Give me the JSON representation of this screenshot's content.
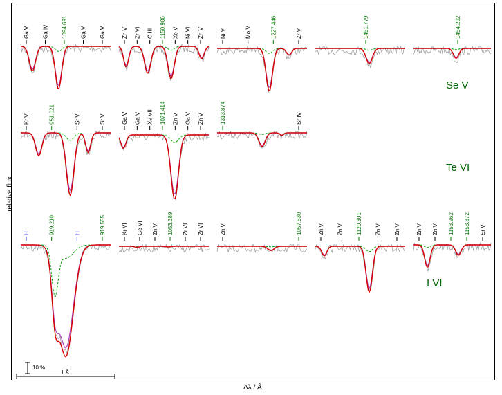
{
  "axes": {
    "ylabel": "relative flux",
    "xlabel": "Δλ / Å"
  },
  "scale_bar": {
    "flux_label": "10 %",
    "wavelength_label": "1 Å"
  },
  "chart_data": {
    "type": "line",
    "colors": {
      "model": "#d40000",
      "model_alt": "#b03fb8",
      "model_without": "#00a000",
      "observed": "#a0a0a0",
      "line_mark": "#000000",
      "target_mark": "#0a7a0a",
      "hydrogen_mark": "#3333cc"
    },
    "ions": [
      "Se V",
      "Te VI",
      "I VI"
    ],
    "panels": [
      {
        "id": "p0",
        "target": "1094.691",
        "labels": [
          {
            "t": "Ga V"
          },
          {
            "t": "Ga IV"
          },
          {
            "t": "1094.691",
            "target": true
          },
          {
            "t": "Ga V"
          },
          {
            "t": "Ga V"
          }
        ],
        "lines": [
          {
            "pos": 0.13,
            "depth": 0.55,
            "width": 0.05
          },
          {
            "pos": 0.42,
            "depth": 0.95,
            "width": 0.05
          }
        ]
      },
      {
        "id": "p1",
        "target": "1150.986",
        "labels": [
          {
            "t": "Zn V"
          },
          {
            "t": "Zr VI"
          },
          {
            "t": "O III"
          },
          {
            "t": "1150.986",
            "target": true
          },
          {
            "t": "Xe V"
          },
          {
            "t": "Ni VI"
          },
          {
            "t": "Zn V"
          }
        ],
        "lines": [
          {
            "pos": 0.08,
            "depth": 0.5,
            "width": 0.04
          },
          {
            "pos": 0.32,
            "depth": 0.65,
            "width": 0.05
          },
          {
            "pos": 0.58,
            "depth": 0.78,
            "width": 0.05
          },
          {
            "pos": 0.92,
            "depth": 0.3,
            "width": 0.04
          }
        ]
      },
      {
        "id": "p2",
        "target": "1227.446",
        "labels": [
          {
            "t": "Ni V"
          },
          {
            "t": "Mo V"
          },
          {
            "t": "1227.446",
            "target": true
          },
          {
            "t": "Zr V"
          }
        ],
        "lines": [
          {
            "pos": 0.58,
            "depth": 0.95,
            "width": 0.05
          },
          {
            "pos": 0.8,
            "depth": 0.15,
            "width": 0.04
          }
        ]
      },
      {
        "id": "p3",
        "target": "1451.779",
        "labels": [
          {
            "t": "1451.779",
            "target": true
          }
        ],
        "lines": [
          {
            "pos": 0.6,
            "depth": 0.55,
            "width": 0.05
          }
        ]
      },
      {
        "id": "p4",
        "target": "1454.292",
        "labels": [
          {
            "t": "1454.292",
            "target": true
          }
        ],
        "lines": [
          {
            "pos": 0.55,
            "depth": 0.45,
            "width": 0.05
          }
        ]
      },
      {
        "id": "p5",
        "target": "951.021",
        "labels": [
          {
            "t": "Kr VI"
          },
          {
            "t": "951.021",
            "target": true
          },
          {
            "t": "Sr V"
          },
          {
            "t": "Sr V"
          }
        ],
        "lines": [
          {
            "pos": 0.2,
            "depth": 0.35,
            "width": 0.05
          },
          {
            "pos": 0.55,
            "depth": 0.95,
            "width": 0.06
          },
          {
            "pos": 0.75,
            "depth": 0.3,
            "width": 0.04
          }
        ]
      },
      {
        "id": "p6",
        "target": "1071.414",
        "labels": [
          {
            "t": "Ga V"
          },
          {
            "t": "Ga V"
          },
          {
            "t": "Xe VII"
          },
          {
            "t": "1071.414",
            "target": true
          },
          {
            "t": "Zn V"
          },
          {
            "t": "Ga VI"
          },
          {
            "t": "Zn V"
          }
        ],
        "lines": [
          {
            "pos": 0.05,
            "depth": 0.2,
            "width": 0.04
          },
          {
            "pos": 0.62,
            "depth": 0.95,
            "width": 0.06
          }
        ]
      },
      {
        "id": "p7",
        "target": "1313.874",
        "labels": [
          {
            "t": "1313.874",
            "target": true
          },
          {
            "t": "Sr IV"
          }
        ],
        "lines": [
          {
            "pos": 0.5,
            "depth": 0.55,
            "width": 0.05
          },
          {
            "pos": 0.72,
            "depth": 0.1,
            "width": 0.03
          }
        ]
      },
      {
        "id": "p8",
        "target": "919.210",
        "labels": [
          {
            "t": "H",
            "h": true
          },
          {
            "t": "919.210",
            "target": true
          },
          {
            "t": "H",
            "h": true
          },
          {
            "t": "919.555",
            "target": true
          }
        ],
        "lines": [
          {
            "pos": 0.5,
            "depth": 0.95,
            "width": 0.12
          },
          {
            "pos": 0.38,
            "depth": 0.4,
            "width": 0.05
          }
        ]
      },
      {
        "id": "p9",
        "target": "1053.389",
        "labels": [
          {
            "t": "Kr VI"
          },
          {
            "t": "Ge VI"
          },
          {
            "t": "Zn V"
          },
          {
            "t": "1053.389",
            "target": true
          },
          {
            "t": "Zr VI"
          },
          {
            "t": "Zr VI"
          }
        ],
        "lines": [
          {
            "pos": 0.2,
            "depth": 0.15,
            "width": 0.04
          },
          {
            "pos": 0.55,
            "depth": 0.1,
            "width": 0.04
          }
        ]
      },
      {
        "id": "p10",
        "target": "1057.530",
        "labels": [
          {
            "t": "Zn V"
          },
          {
            "t": "1057.530",
            "target": true
          }
        ],
        "lines": [
          {
            "pos": 0.6,
            "depth": 0.25,
            "width": 0.05
          }
        ]
      },
      {
        "id": "p11",
        "target": "1120.301",
        "labels": [
          {
            "t": "Zn V"
          },
          {
            "t": "Zn V"
          },
          {
            "t": "1120.301",
            "target": true
          },
          {
            "t": "Zn V"
          },
          {
            "t": "Zn V"
          }
        ],
        "lines": [
          {
            "pos": 0.1,
            "depth": 0.2,
            "width": 0.04
          },
          {
            "pos": 0.6,
            "depth": 0.95,
            "width": 0.05
          }
        ]
      },
      {
        "id": "p12",
        "target": "1153.262",
        "labels": [
          {
            "t": "Zn V"
          },
          {
            "t": "Zn V"
          },
          {
            "t": "1153.262",
            "target": true
          },
          {
            "t": "1153.372",
            "target": true
          },
          {
            "t": "Sr V"
          }
        ],
        "lines": [
          {
            "pos": 0.18,
            "depth": 0.65,
            "width": 0.05
          },
          {
            "pos": 0.58,
            "depth": 0.3,
            "width": 0.05
          }
        ]
      }
    ]
  }
}
